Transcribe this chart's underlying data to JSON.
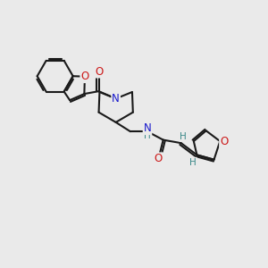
{
  "bg_color": "#eaeaea",
  "bond_color": "#1a1a1a",
  "N_color": "#1818cc",
  "O_color": "#cc1818",
  "H_color": "#3a8888",
  "line_width": 1.6,
  "font_size_atom": 8.5,
  "fig_size": [
    3.0,
    3.0
  ],
  "dpi": 100,
  "xlim": [
    0,
    10
  ],
  "ylim": [
    0,
    10
  ]
}
